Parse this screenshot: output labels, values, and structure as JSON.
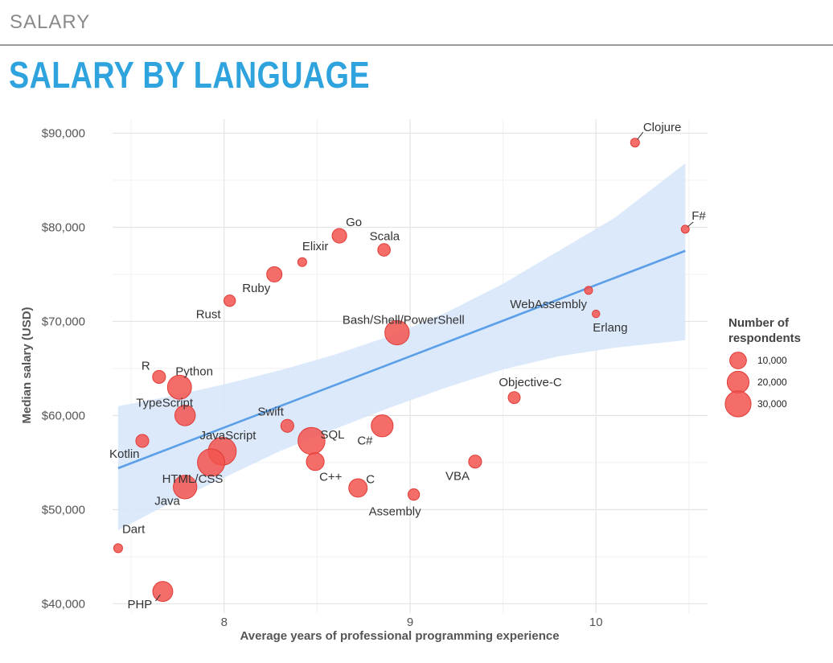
{
  "header": {
    "section": "SALARY",
    "title": "SALARY BY LANGUAGE"
  },
  "chart_data": {
    "type": "scatter",
    "xlabel": "Average years of professional programming experience",
    "ylabel": "Median salary (USD)",
    "xlim": [
      7.4,
      10.6
    ],
    "ylim": [
      39000,
      91500
    ],
    "x_ticks": [
      8,
      9,
      10
    ],
    "x_tick_labels": [
      "8",
      "9",
      "10"
    ],
    "y_ticks": [
      40000,
      50000,
      60000,
      70000,
      80000,
      90000
    ],
    "y_tick_labels": [
      "$40,000",
      "$50,000",
      "$60,000",
      "$70,000",
      "$80,000",
      "$90,000"
    ],
    "grid": true,
    "point_color": "#f2544f",
    "trend_color": "#5a9fe8",
    "band_color": "#d7e7fb",
    "trend_line": {
      "x": [
        7.43,
        10.48
      ],
      "y": [
        54400,
        77500
      ]
    },
    "confidence_band": {
      "x": [
        7.43,
        7.7,
        8.0,
        8.3,
        8.6,
        8.9,
        9.2,
        9.5,
        9.8,
        10.1,
        10.48
      ],
      "upper": [
        61000,
        62000,
        63300,
        64800,
        66500,
        68500,
        71000,
        74000,
        77500,
        81000,
        86800
      ],
      "lower": [
        47800,
        50600,
        53400,
        56200,
        58600,
        60900,
        63000,
        64900,
        66300,
        67200,
        68000
      ]
    },
    "legend": {
      "title": "Number of respondents",
      "placement": "right",
      "entries": [
        {
          "label": "10,000",
          "value": 10000
        },
        {
          "label": "20,000",
          "value": 20000
        },
        {
          "label": "30,000",
          "value": 30000
        }
      ]
    },
    "points": [
      {
        "name": "Clojure",
        "x": 10.21,
        "y": 89000,
        "respondents": 1500
      },
      {
        "name": "F#",
        "x": 10.48,
        "y": 79800,
        "respondents": 1000
      },
      {
        "name": "Go",
        "x": 8.62,
        "y": 79100,
        "respondents": 7000
      },
      {
        "name": "Scala",
        "x": 8.86,
        "y": 77600,
        "respondents": 4500
      },
      {
        "name": "Elixir",
        "x": 8.42,
        "y": 76300,
        "respondents": 1500
      },
      {
        "name": "Ruby",
        "x": 8.27,
        "y": 75000,
        "respondents": 8000
      },
      {
        "name": "Rust",
        "x": 8.03,
        "y": 72200,
        "respondents": 3500
      },
      {
        "name": "WebAssembly",
        "x": 9.96,
        "y": 73300,
        "respondents": 1000
      },
      {
        "name": "Erlang",
        "x": 10.0,
        "y": 70800,
        "respondents": 800
      },
      {
        "name": "Bash/Shell/PowerShell",
        "x": 8.93,
        "y": 68800,
        "respondents": 26000
      },
      {
        "name": "R",
        "x": 7.65,
        "y": 64100,
        "respondents": 5000
      },
      {
        "name": "Python",
        "x": 7.76,
        "y": 63000,
        "respondents": 25000
      },
      {
        "name": "Objective-C",
        "x": 9.56,
        "y": 61900,
        "respondents": 4000
      },
      {
        "name": "TypeScript",
        "x": 7.79,
        "y": 60000,
        "respondents": 17000
      },
      {
        "name": "Swift",
        "x": 8.34,
        "y": 58900,
        "respondents": 5000
      },
      {
        "name": "C#",
        "x": 8.85,
        "y": 58900,
        "respondents": 20000
      },
      {
        "name": "Kotlin",
        "x": 7.56,
        "y": 57300,
        "respondents": 5000
      },
      {
        "name": "JavaScript",
        "x": 7.99,
        "y": 56200,
        "respondents": 36000
      },
      {
        "name": "SQL",
        "x": 8.47,
        "y": 57300,
        "respondents": 33000
      },
      {
        "name": "HTML/CSS",
        "x": 7.93,
        "y": 55000,
        "respondents": 34000
      },
      {
        "name": "C++",
        "x": 8.49,
        "y": 55100,
        "respondents": 12000
      },
      {
        "name": "VBA",
        "x": 9.35,
        "y": 55100,
        "respondents": 5000
      },
      {
        "name": "Java",
        "x": 7.79,
        "y": 52400,
        "respondents": 24000
      },
      {
        "name": "C",
        "x": 8.72,
        "y": 52300,
        "respondents": 13000
      },
      {
        "name": "Assembly",
        "x": 9.02,
        "y": 51600,
        "respondents": 3500
      },
      {
        "name": "Dart",
        "x": 7.43,
        "y": 45900,
        "respondents": 1500
      },
      {
        "name": "PHP",
        "x": 7.67,
        "y": 41300,
        "respondents": 16000
      }
    ]
  }
}
